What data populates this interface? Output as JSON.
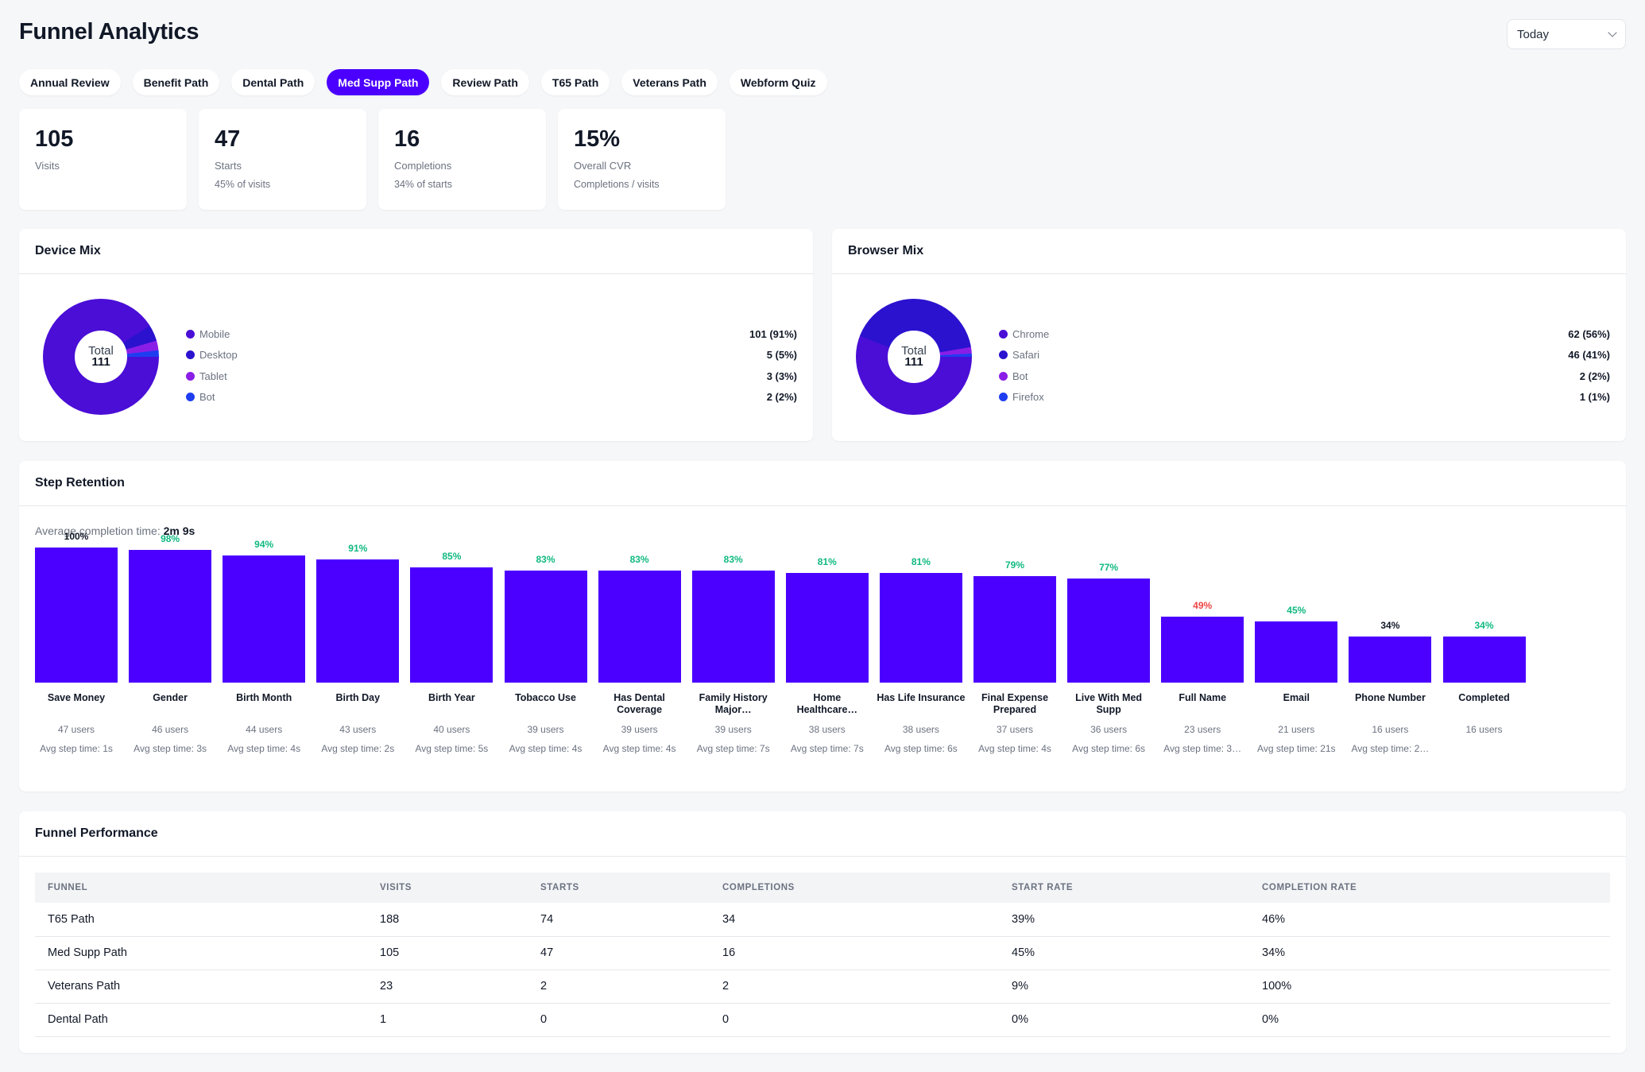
{
  "page": {
    "title": "Funnel Analytics"
  },
  "date_range": {
    "selected": "Today"
  },
  "tabs": [
    {
      "label": "Annual Review",
      "active": false
    },
    {
      "label": "Benefit Path",
      "active": false
    },
    {
      "label": "Dental Path",
      "active": false
    },
    {
      "label": "Med Supp Path",
      "active": true
    },
    {
      "label": "Review Path",
      "active": false
    },
    {
      "label": "T65 Path",
      "active": false
    },
    {
      "label": "Veterans Path",
      "active": false
    },
    {
      "label": "Webform Quiz",
      "active": false
    }
  ],
  "kpis": [
    {
      "value": "105",
      "label": "Visits",
      "sub": ""
    },
    {
      "value": "47",
      "label": "Starts",
      "sub": "45% of visits"
    },
    {
      "value": "16",
      "label": "Completions",
      "sub": "34% of starts"
    },
    {
      "value": "15%",
      "label": "Overall CVR",
      "sub": "Completions / visits"
    }
  ],
  "device_mix": {
    "title": "Device Mix",
    "total_label": "Total",
    "total_value": "111",
    "items": [
      {
        "label": "Mobile",
        "value": "101 (91%)",
        "count": 101,
        "color": "#4a0ed6"
      },
      {
        "label": "Desktop",
        "value": "5 (5%)",
        "count": 5,
        "color": "#2b12cf"
      },
      {
        "label": "Tablet",
        "value": "3 (3%)",
        "count": 3,
        "color": "#8a1ee6"
      },
      {
        "label": "Bot",
        "value": "2 (2%)",
        "count": 2,
        "color": "#1f3df0"
      }
    ]
  },
  "browser_mix": {
    "title": "Browser Mix",
    "total_label": "Total",
    "total_value": "111",
    "items": [
      {
        "label": "Chrome",
        "value": "62 (56%)",
        "count": 62,
        "color": "#4a0ed6"
      },
      {
        "label": "Safari",
        "value": "46 (41%)",
        "count": 46,
        "color": "#2b12cf"
      },
      {
        "label": "Bot",
        "value": "2 (2%)",
        "count": 2,
        "color": "#8a1ee6"
      },
      {
        "label": "Firefox",
        "value": "1 (1%)",
        "count": 1,
        "color": "#1f3df0"
      }
    ]
  },
  "step_retention": {
    "title": "Step Retention",
    "avg_label": "Average completion time:",
    "avg_value": "2m 9s",
    "steps": [
      {
        "name": "Save Money",
        "pct": "100%",
        "pct_color": "#111827",
        "retention": 100,
        "users": "47 users",
        "time": "Avg step time: 1s"
      },
      {
        "name": "Gender",
        "pct": "98%",
        "pct_color": "#10b981",
        "retention": 98,
        "users": "46 users",
        "time": "Avg step time: 3s"
      },
      {
        "name": "Birth Month",
        "pct": "94%",
        "pct_color": "#10b981",
        "retention": 94,
        "users": "44 users",
        "time": "Avg step time: 4s"
      },
      {
        "name": "Birth Day",
        "pct": "91%",
        "pct_color": "#10b981",
        "retention": 91,
        "users": "43 users",
        "time": "Avg step time: 2s"
      },
      {
        "name": "Birth Year",
        "pct": "85%",
        "pct_color": "#10b981",
        "retention": 85,
        "users": "40 users",
        "time": "Avg step time: 5s"
      },
      {
        "name": "Tobacco Use",
        "pct": "83%",
        "pct_color": "#10b981",
        "retention": 83,
        "users": "39 users",
        "time": "Avg step time: 4s"
      },
      {
        "name": "Has Dental Coverage",
        "pct": "83%",
        "pct_color": "#10b981",
        "retention": 83,
        "users": "39 users",
        "time": "Avg step time: 4s"
      },
      {
        "name": "Family History Major…",
        "pct": "83%",
        "pct_color": "#10b981",
        "retention": 83,
        "users": "39 users",
        "time": "Avg step time: 7s"
      },
      {
        "name": "Home Healthcare…",
        "pct": "81%",
        "pct_color": "#10b981",
        "retention": 81,
        "users": "38 users",
        "time": "Avg step time: 7s"
      },
      {
        "name": "Has Life Insurance",
        "pct": "81%",
        "pct_color": "#10b981",
        "retention": 81,
        "users": "38 users",
        "time": "Avg step time: 6s"
      },
      {
        "name": "Final Expense Prepared",
        "pct": "79%",
        "pct_color": "#10b981",
        "retention": 79,
        "users": "37 users",
        "time": "Avg step time: 4s"
      },
      {
        "name": "Live With Med Supp",
        "pct": "77%",
        "pct_color": "#10b981",
        "retention": 77,
        "users": "36 users",
        "time": "Avg step time: 6s"
      },
      {
        "name": "Full Name",
        "pct": "49%",
        "pct_color": "#ef4444",
        "retention": 49,
        "users": "23 users",
        "time": "Avg step time: 3…"
      },
      {
        "name": "Email",
        "pct": "45%",
        "pct_color": "#10b981",
        "retention": 45,
        "users": "21 users",
        "time": "Avg step time: 21s"
      },
      {
        "name": "Phone Number",
        "pct": "34%",
        "pct_color": "#111827",
        "retention": 34,
        "users": "16 users",
        "time": "Avg step time: 2…"
      },
      {
        "name": "Completed",
        "pct": "34%",
        "pct_color": "#10b981",
        "retention": 34,
        "users": "16 users",
        "time": ""
      }
    ]
  },
  "funnel_performance": {
    "title": "Funnel Performance",
    "columns": [
      "FUNNEL",
      "VISITS",
      "STARTS",
      "COMPLETIONS",
      "START RATE",
      "COMPLETION RATE"
    ],
    "rows": [
      [
        "T65 Path",
        "188",
        "74",
        "34",
        "39%",
        "46%"
      ],
      [
        "Med Supp Path",
        "105",
        "47",
        "16",
        "45%",
        "34%"
      ],
      [
        "Veterans Path",
        "23",
        "2",
        "2",
        "9%",
        "100%"
      ],
      [
        "Dental Path",
        "1",
        "0",
        "0",
        "0%",
        "0%"
      ]
    ]
  },
  "colors": {
    "accent": "#4b00ff",
    "positive": "#10b981",
    "negative": "#ef4444"
  }
}
